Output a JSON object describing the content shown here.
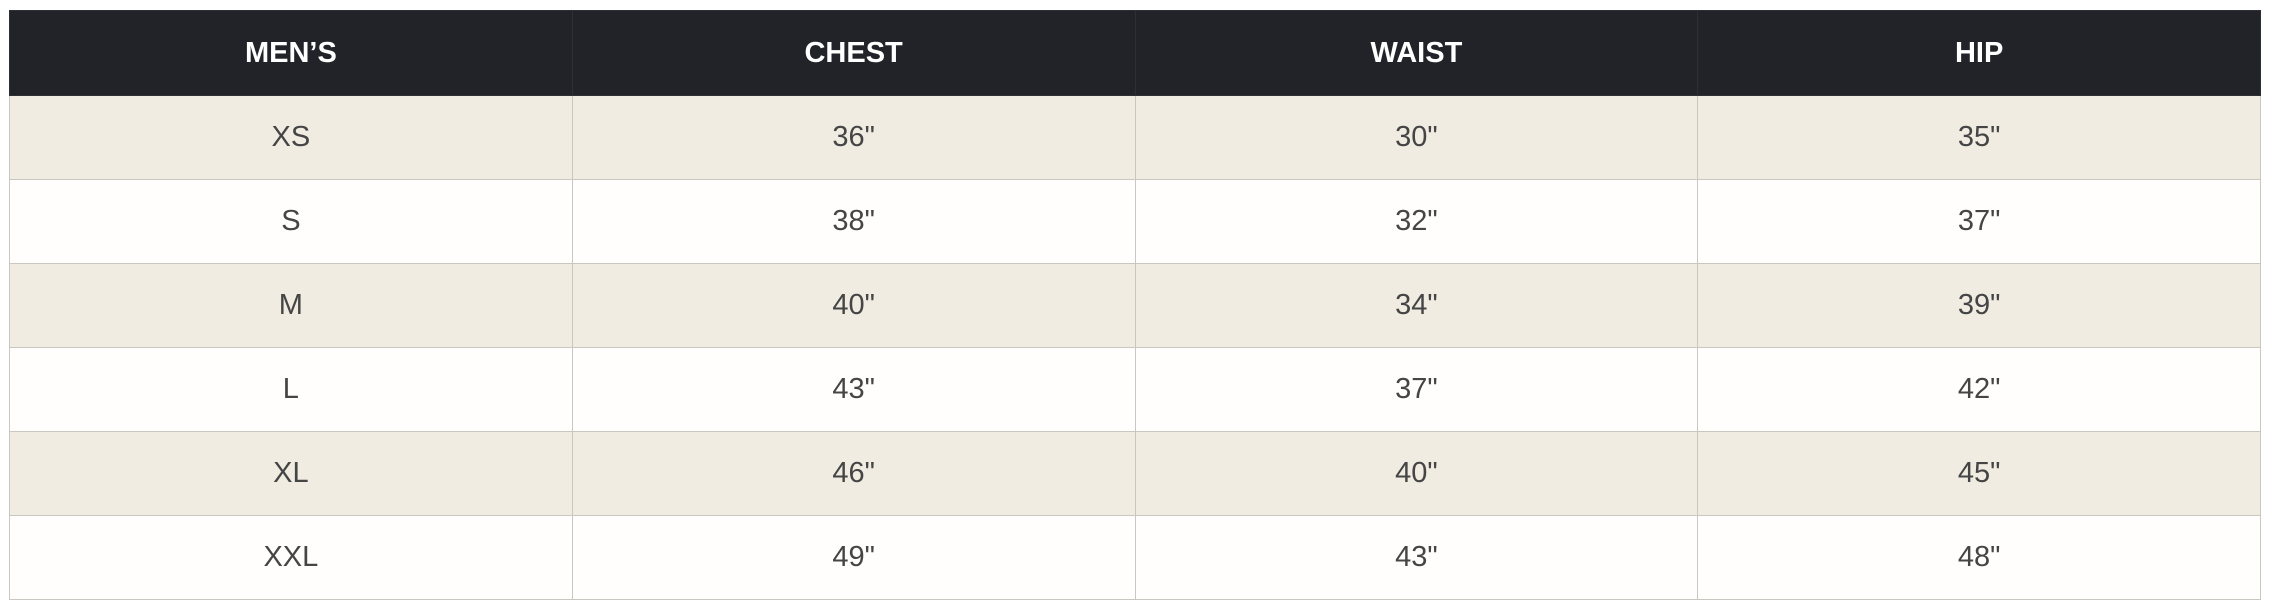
{
  "table": {
    "headers": [
      "MEN’S",
      "CHEST",
      "WAIST",
      "HIP"
    ],
    "rows": [
      [
        "XS",
        "36\"",
        "30\"",
        "35\""
      ],
      [
        "S",
        "38\"",
        "32\"",
        "37\""
      ],
      [
        "M",
        "40\"",
        "34\"",
        "39\""
      ],
      [
        "L",
        "43\"",
        "37\"",
        "42\""
      ],
      [
        "XL",
        "46\"",
        "40\"",
        "45\""
      ],
      [
        "XXL",
        "49\"",
        "43\"",
        "48\""
      ]
    ]
  },
  "colors": {
    "header_bg": "#222328",
    "header_text": "#ffffff",
    "alt_row_bg": "#f0ece2",
    "row_bg": "#fffefc",
    "cell_text": "#454545"
  }
}
